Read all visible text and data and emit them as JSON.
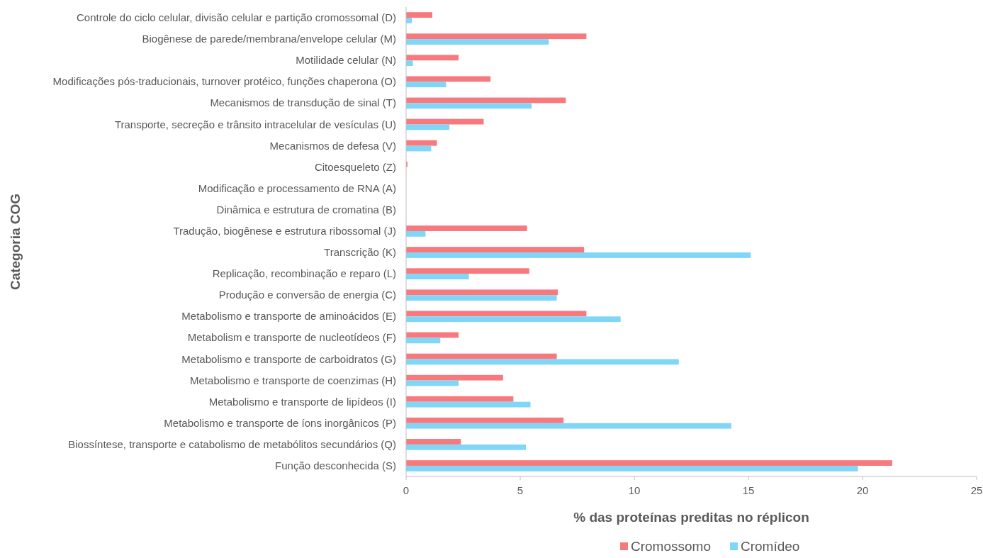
{
  "chart_data": {
    "type": "bar",
    "orientation": "horizontal",
    "xlabel": "% das proteínas preditas no réplicon",
    "ylabel": "Categoria COG",
    "categories": [
      "Controle do ciclo celular, divisão celular e partição cromossomal (D)",
      "Biogênese de parede/membrana/envelope celular (M)",
      "Motilidade celular (N)",
      "Modificações pós-traducionais, turnover protéico, funções chaperona (O)",
      "Mecanismos de transdução de sinal (T)",
      "Transporte, secreção e trânsito intracelular de vesículas (U)",
      "Mecanismos de defesa (V)",
      "Citoesqueleto (Z)",
      "Modificação e processamento de RNA (A)",
      "Dinâmica e estrutura de cromatina (B)",
      "Tradução, biogênese e estrutura ribossomal (J)",
      "Transcrição (K)",
      "Replicação, recombinação e reparo (L)",
      "Produção e conversão de energia (C)",
      "Metabolismo e transporte de aminoácidos (E)",
      "Metabolism e transporte de nucleotídeos (F)",
      "Metabolismo e transporte de carboidratos (G)",
      "Metabolismo e transporte de coenzimas (H)",
      "Metabolismo e transporte de lipídeos (I)",
      "Metabolismo e transporte de íons inorgânicos (P)",
      "Biossíntese, transporte e catabolismo de metabólitos secundários (Q)",
      "Função desconhecida (S)"
    ],
    "series": [
      {
        "name": "Cromossomo",
        "color": "#f8797d",
        "values": [
          1.15,
          7.9,
          2.3,
          3.7,
          7.0,
          3.4,
          1.35,
          0.06,
          0,
          0,
          5.3,
          7.8,
          5.4,
          6.65,
          7.9,
          2.3,
          6.6,
          4.25,
          4.7,
          6.9,
          2.4,
          21.3
        ]
      },
      {
        "name": "Cromídeo",
        "color": "#7fd6f6",
        "values": [
          0.25,
          6.25,
          0.3,
          1.75,
          5.5,
          1.9,
          1.1,
          0,
          0,
          0,
          0.85,
          15.1,
          2.75,
          6.6,
          9.4,
          1.5,
          11.95,
          2.3,
          5.45,
          14.25,
          5.25,
          19.8
        ]
      }
    ],
    "xlim": [
      0,
      25
    ],
    "xticks": [
      0,
      5,
      10,
      15,
      20,
      25
    ],
    "grid": false,
    "legend": "bottom"
  }
}
